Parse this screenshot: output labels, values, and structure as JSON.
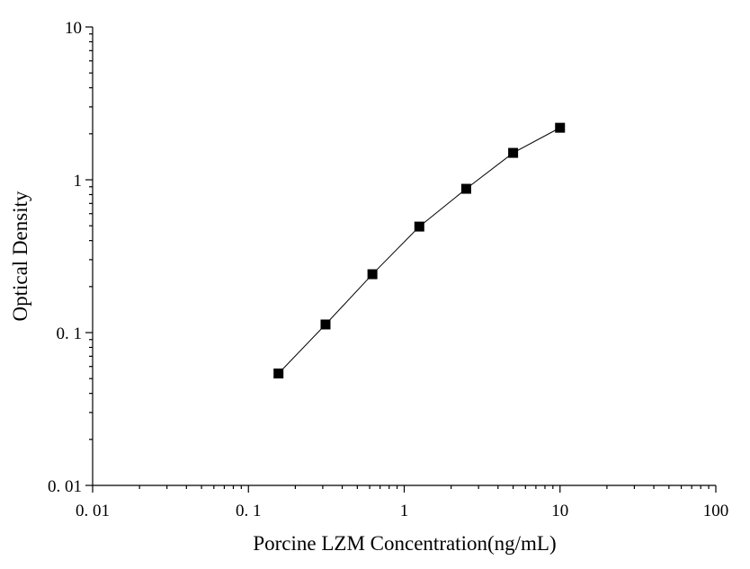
{
  "chart_data": {
    "type": "line",
    "xlabel": "Porcine LZM Concentration(ng/mL)",
    "ylabel": "Optical Density",
    "x": [
      0.156,
      0.3125,
      0.625,
      1.25,
      2.5,
      5,
      10
    ],
    "series": [
      {
        "color": "#000000",
        "values": [
          0.054,
          0.113,
          0.241,
          0.494,
          0.873,
          1.5,
          2.19
        ]
      }
    ],
    "xscale": "log",
    "yscale": "log",
    "xlim": [
      0.01,
      100
    ],
    "ylim": [
      0.01,
      10
    ],
    "xticks": [
      {
        "value": 0.01,
        "label": "0. 01"
      },
      {
        "value": 0.1,
        "label": "0. 1"
      },
      1,
      10,
      100
    ],
    "yticks": [
      {
        "value": 0.01,
        "label": "0. 01"
      },
      {
        "value": 0.1,
        "label": "0. 1"
      },
      1,
      10
    ],
    "marker": "square"
  }
}
